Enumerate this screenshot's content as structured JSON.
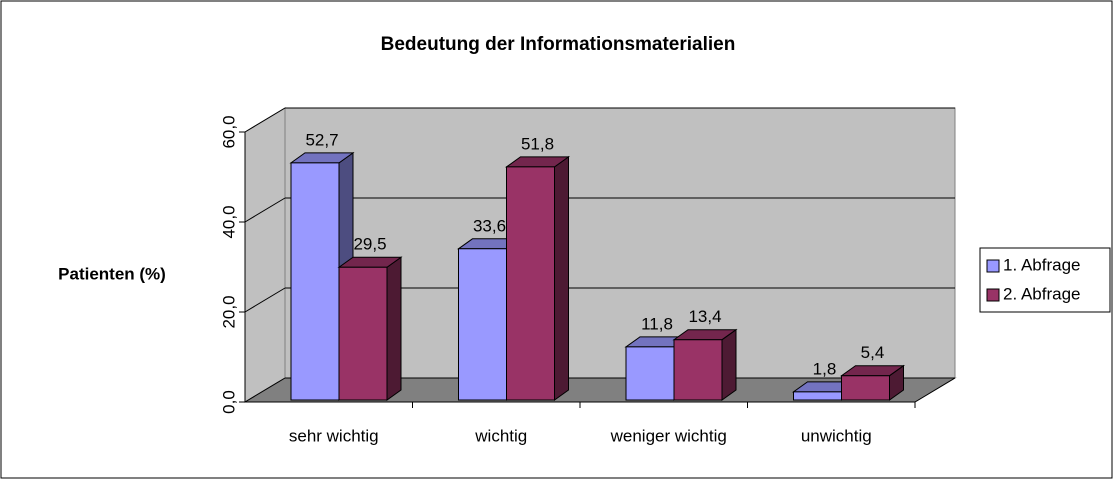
{
  "chart_data": {
    "type": "bar3d",
    "title": "Bedeutung der Informationsmaterialien",
    "y_label": "Patienten (%)",
    "categories": [
      "sehr wichtig",
      "wichtig",
      "weniger wichtig",
      "unwichtig"
    ],
    "series": [
      {
        "name": "1. Abfrage",
        "color": "#9999ff",
        "values": [
          52.7,
          33.6,
          11.8,
          1.8
        ],
        "value_labels": [
          "52,7",
          "33,6",
          "11,8",
          "1,8"
        ]
      },
      {
        "name": "2. Abfrage",
        "color": "#993366",
        "values": [
          29.5,
          51.8,
          13.4,
          5.4
        ],
        "value_labels": [
          "29,5",
          "51,8",
          "13,4",
          "5,4"
        ]
      }
    ],
    "ylim": [
      0,
      60
    ],
    "yticks": [
      {
        "value": 0,
        "label": "0,0"
      },
      {
        "value": 20,
        "label": "20,0"
      },
      {
        "value": 40,
        "label": "40,0"
      },
      {
        "value": 60,
        "label": "60,0"
      }
    ],
    "grid": true,
    "legend": "right"
  }
}
